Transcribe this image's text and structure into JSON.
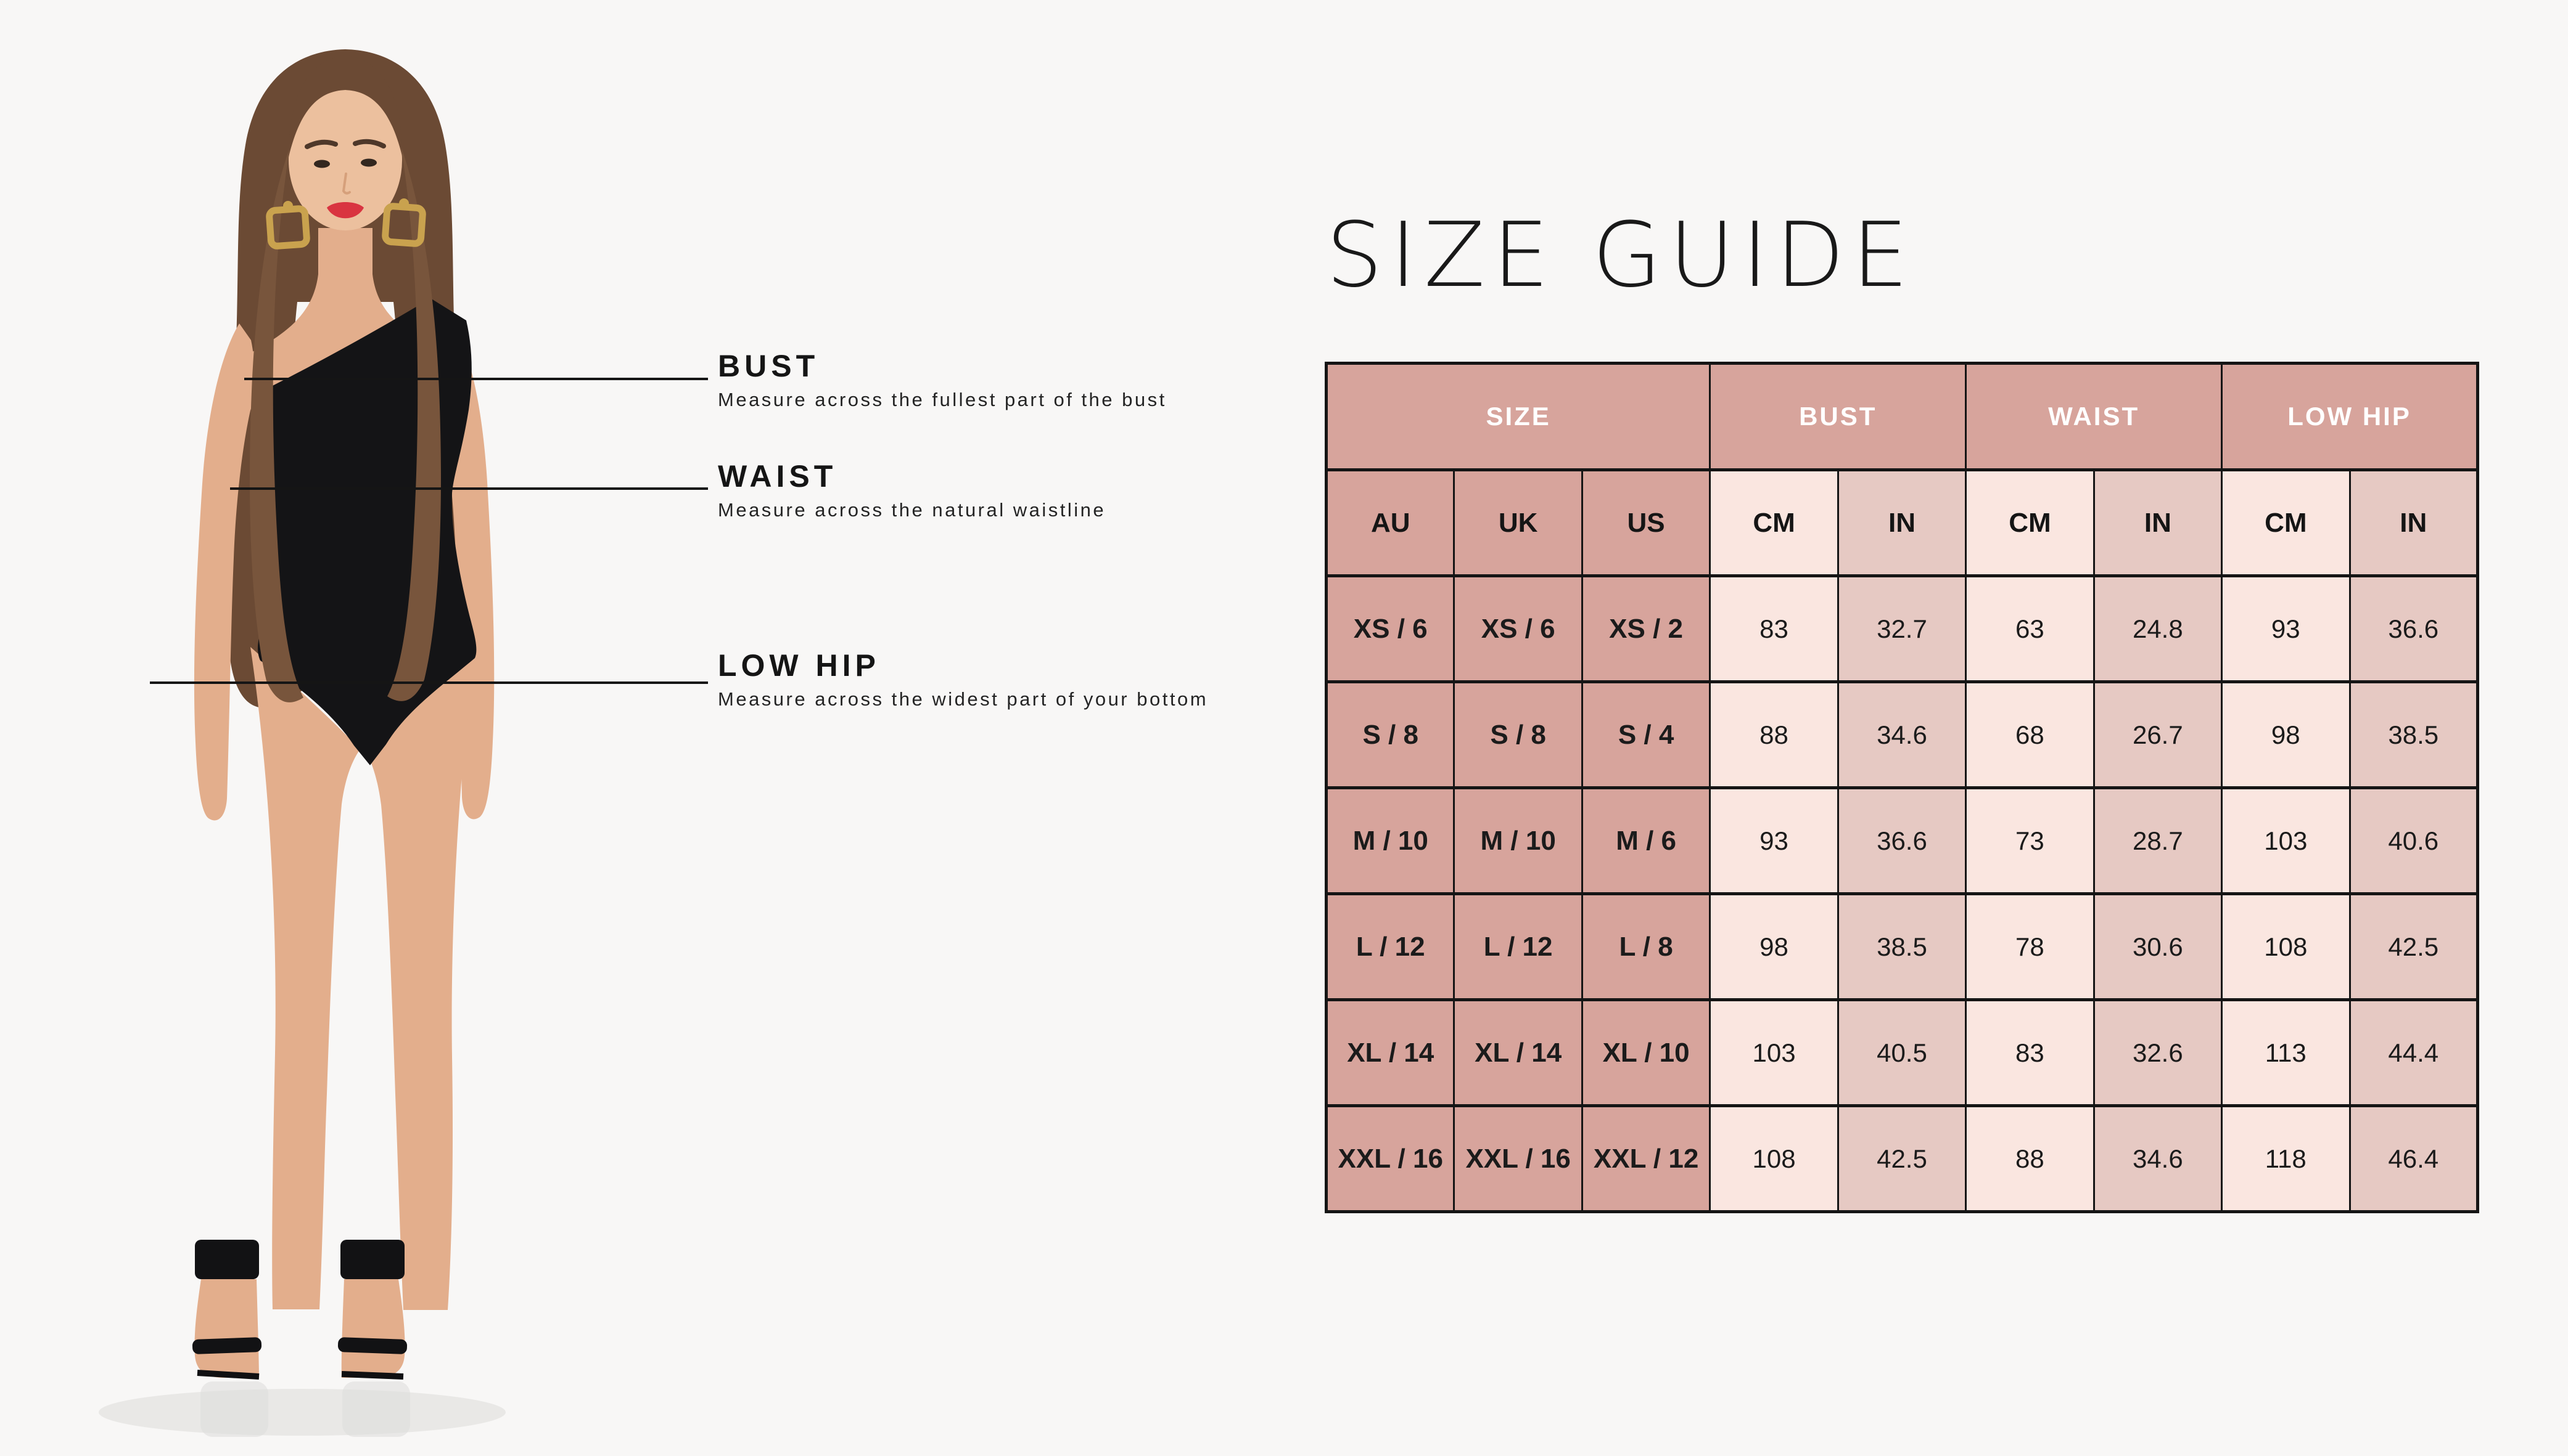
{
  "page": {
    "title": "SIZE GUIDE"
  },
  "colors": {
    "page_bg": "#f8f7f6",
    "rose": "#d7a49c",
    "light_pink": "#fae6e0",
    "medium_pink": "#e6c9c3",
    "border": "#151515",
    "text": "#1b1b1b",
    "line": "#151515",
    "skin": "#e3ae8c",
    "skin_light": "#ecc09e",
    "hair": "#6b4a34",
    "hair_light": "#78553c",
    "suit": "#141416",
    "gold": "#c9a24e",
    "lips": "#d93440"
  },
  "model": {
    "description": "Model wearing a black one-shoulder bodysuit, gold square earrings and black ankle-strap heels"
  },
  "annotations": [
    {
      "label": "BUST",
      "description": "Measure across the fullest part of the bust"
    },
    {
      "label": "WAIST",
      "description": "Measure across the natural waistline"
    },
    {
      "label": "LOW HIP",
      "description": "Measure across the widest part of your bottom"
    }
  ],
  "size_table": {
    "group_headers": [
      {
        "label": "SIZE",
        "span": 3
      },
      {
        "label": "BUST",
        "span": 2
      },
      {
        "label": "WAIST",
        "span": 2
      },
      {
        "label": "LOW HIP",
        "span": 2
      }
    ],
    "column_headers": [
      "AU",
      "UK",
      "US",
      "CM",
      "IN",
      "CM",
      "IN",
      "CM",
      "IN"
    ],
    "rows": [
      [
        "XS / 6",
        "XS / 6",
        "XS / 2",
        "83",
        "32.7",
        "63",
        "24.8",
        "93",
        "36.6"
      ],
      [
        "S / 8",
        "S / 8",
        "S / 4",
        "88",
        "34.6",
        "68",
        "26.7",
        "98",
        "38.5"
      ],
      [
        "M / 10",
        "M / 10",
        "M / 6",
        "93",
        "36.6",
        "73",
        "28.7",
        "103",
        "40.6"
      ],
      [
        "L / 12",
        "L / 12",
        "L / 8",
        "98",
        "38.5",
        "78",
        "30.6",
        "108",
        "42.5"
      ],
      [
        "XL / 14",
        "XL / 14",
        "XL / 10",
        "103",
        "40.5",
        "83",
        "32.6",
        "113",
        "44.4"
      ],
      [
        "XXL / 16",
        "XXL / 16",
        "XXL / 12",
        "108",
        "42.5",
        "88",
        "34.6",
        "118",
        "46.4"
      ]
    ]
  },
  "chart_data": {
    "type": "table",
    "title": "SIZE GUIDE",
    "column_groups": [
      {
        "label": "SIZE",
        "columns": [
          "AU",
          "UK",
          "US"
        ]
      },
      {
        "label": "BUST",
        "columns": [
          "CM",
          "IN"
        ]
      },
      {
        "label": "WAIST",
        "columns": [
          "CM",
          "IN"
        ]
      },
      {
        "label": "LOW HIP",
        "columns": [
          "CM",
          "IN"
        ]
      }
    ],
    "rows": [
      [
        "XS / 6",
        "XS / 6",
        "XS / 2",
        83,
        32.7,
        63,
        24.8,
        93,
        36.6
      ],
      [
        "S / 8",
        "S / 8",
        "S / 4",
        88,
        34.6,
        68,
        26.7,
        98,
        38.5
      ],
      [
        "M / 10",
        "M / 10",
        "M / 6",
        93,
        36.6,
        73,
        28.7,
        103,
        40.6
      ],
      [
        "L / 12",
        "L / 12",
        "L / 8",
        98,
        38.5,
        78,
        30.6,
        108,
        42.5
      ],
      [
        "XL / 14",
        "XL / 14",
        "XL / 10",
        103,
        40.5,
        83,
        32.6,
        113,
        44.4
      ],
      [
        "XXL / 16",
        "XXL / 16",
        "XXL / 12",
        108,
        42.5,
        88,
        34.6,
        118,
        46.4
      ]
    ]
  }
}
